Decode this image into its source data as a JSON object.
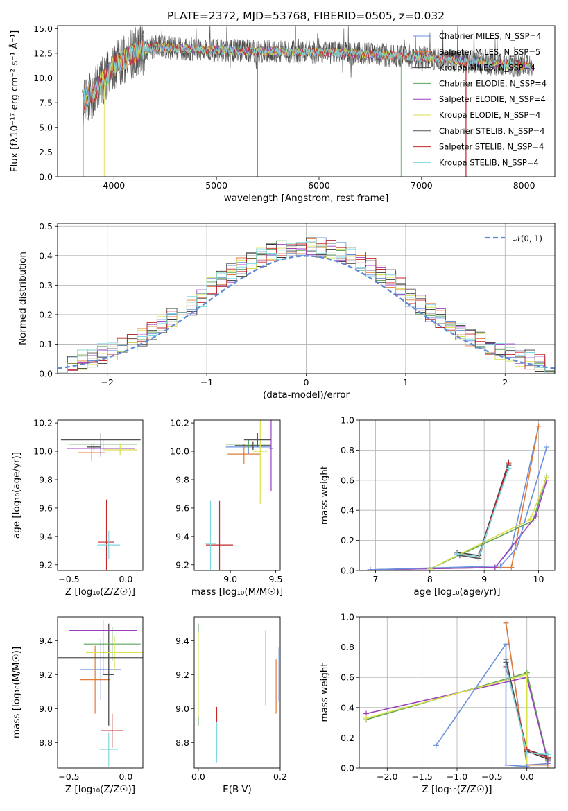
{
  "colors": {
    "palette": [
      "#6a8fdc",
      "#e07b39",
      "#3b3b3b",
      "#5fa55a",
      "#9b3fbf",
      "#d8e04a",
      "#555555",
      "#c0282a",
      "#7fd7e0"
    ],
    "gaussian": "#5a8ad6"
  },
  "chart_data": [
    {
      "id": "spectrum",
      "type": "line",
      "title": "PLATE=2372, MJD=53768, FIBERID=0505, z=0.032",
      "xlabel": "wavelength [Angstrom, rest frame]",
      "ylabel": "Flux [fλ10⁻¹⁷ erg cm⁻² s⁻¹ Å⁻¹]",
      "xlim": [
        3450,
        8300
      ],
      "ylim": [
        0,
        15.3
      ],
      "xticks": [
        "4000",
        "5000",
        "6000",
        "7000",
        "8000"
      ],
      "yticks": [
        "0.0",
        "2.5",
        "5.0",
        "7.5",
        "10.0",
        "12.5",
        "15.0"
      ],
      "legend": {
        "placement": "top-right",
        "entries": [
          "Chabrier MILES, N_SSP=4",
          "Salpeter MILES, N_SSP=5",
          "Kroupa MILES, N_SSP=4",
          "Chabrier ELODIE, N_SSP=4",
          "Salpeter ELODIE, N_SSP=4",
          "Kroupa ELODIE, N_SSP=4",
          "Chabrier STELIB, N_SSP=4",
          "Salpeter STELIB, N_SSP=4",
          "Kroupa STELIB, N_SSP=4"
        ]
      },
      "continuum": [
        [
          3700,
          7.8
        ],
        [
          3800,
          8.5
        ],
        [
          3900,
          9.8
        ],
        [
          4000,
          11.2
        ],
        [
          4200,
          12.6
        ],
        [
          4400,
          13.2
        ],
        [
          4600,
          13.0
        ],
        [
          5000,
          12.8
        ],
        [
          5500,
          12.7
        ],
        [
          6000,
          12.6
        ],
        [
          6500,
          12.4
        ],
        [
          7000,
          12.1
        ],
        [
          7500,
          11.6
        ],
        [
          8000,
          11.2
        ],
        [
          8080,
          11.1
        ]
      ]
    },
    {
      "id": "residuals",
      "type": "histogram",
      "xlabel": "(data-model)/error",
      "ylabel": "Normed distribution",
      "xlim": [
        -2.5,
        2.5
      ],
      "ylim": [
        0,
        0.51
      ],
      "xticks": [
        "−2",
        "−1",
        "0",
        "1",
        "2"
      ],
      "yticks": [
        "0.0",
        "0.1",
        "0.2",
        "0.3",
        "0.4",
        "0.5"
      ],
      "grid": true,
      "legend": {
        "placement": "top-right",
        "entries": [
          "𝒩(0, 1)"
        ]
      },
      "bins": {
        "start": -2.5,
        "width": 0.1,
        "count": 50
      }
    },
    {
      "id": "age_vs_Z",
      "type": "errorbar",
      "xlabel": "Z [log₁₀(Z/Z☉)]",
      "ylabel": "age  [log₁₀(age/yr)]",
      "xlim": [
        -0.6,
        0.15
      ],
      "ylim": [
        9.16,
        10.22
      ],
      "xticks": [
        "−0.5",
        "0.0"
      ],
      "yticks": [
        "9.2",
        "9.4",
        "9.6",
        "9.8",
        "10.0",
        "10.2"
      ],
      "points": [
        {
          "x": -0.22,
          "y": 10.02,
          "xerr": 0.28,
          "yerr": 0.06
        },
        {
          "x": -0.3,
          "y": 9.99,
          "xerr": 0.12,
          "yerr": 0.06
        },
        {
          "x": -0.28,
          "y": 10.03,
          "xerr": 0.06,
          "yerr": 0.03
        },
        {
          "x": -0.2,
          "y": 10.05,
          "xerr": 0.3,
          "yerr": 0.04
        },
        {
          "x": -0.22,
          "y": 10.02,
          "xerr": 0.3,
          "yerr": 0.05
        },
        {
          "x": -0.05,
          "y": 10.01,
          "xerr": 0.15,
          "yerr": 0.04
        },
        {
          "x": -0.22,
          "y": 10.08,
          "xerr": 0.35,
          "yerr": 0.05
        },
        {
          "x": -0.17,
          "y": 9.36,
          "xerr": 0.07,
          "yerr": 0.3
        },
        {
          "x": -0.15,
          "y": 9.34,
          "xerr": 0.1,
          "yerr": 0.1
        }
      ]
    },
    {
      "id": "age_vs_mass",
      "type": "errorbar",
      "xlabel": "mass [log₁₀(M/M☉)]",
      "ylabel": "",
      "xlim": [
        8.6,
        9.55
      ],
      "ylim": [
        9.16,
        10.22
      ],
      "xticks": [
        "9.0",
        "9.5"
      ],
      "yticks": [
        "9.2",
        "9.4",
        "9.6",
        "9.8",
        "10.0",
        "10.2"
      ],
      "points": [
        {
          "x": 9.2,
          "y": 10.03,
          "xerr": 0.25,
          "yerr": 0.05
        },
        {
          "x": 9.15,
          "y": 9.98,
          "xerr": 0.18,
          "yerr": 0.07
        },
        {
          "x": 9.25,
          "y": 10.04,
          "xerr": 0.2,
          "yerr": 0.03
        },
        {
          "x": 9.2,
          "y": 10.05,
          "xerr": 0.25,
          "yerr": 0.03
        },
        {
          "x": 9.45,
          "y": 10.02,
          "xerr": 0.02,
          "yerr": 0.3
        },
        {
          "x": 9.33,
          "y": 10.0,
          "xerr": 0.08,
          "yerr": 0.37
        },
        {
          "x": 9.3,
          "y": 10.08,
          "xerr": 0.15,
          "yerr": 0.05
        },
        {
          "x": 8.88,
          "y": 9.34,
          "xerr": 0.15,
          "yerr": 0.31
        },
        {
          "x": 8.78,
          "y": 9.35,
          "xerr": 0.06,
          "yerr": 0.3
        }
      ]
    },
    {
      "id": "mass_weight_vs_age",
      "type": "line",
      "xlabel": "age  [log₁₀(age/yr)]",
      "ylabel": "mass weight",
      "xlim": [
        6.7,
        10.3
      ],
      "ylim": [
        0,
        1
      ],
      "xticks": [
        "7",
        "8",
        "9",
        "10"
      ],
      "yticks": [
        "0.0",
        "0.2",
        "0.4",
        "0.6",
        "0.8",
        "1.0"
      ],
      "grid": true,
      "series": [
        {
          "x": [
            6.9,
            9.2,
            9.5,
            10.0
          ],
          "y": [
            0.005,
            0.02,
            0.15,
            0.96
          ]
        },
        {
          "x": [
            6.9,
            9.2,
            9.5,
            10.0
          ],
          "y": [
            0.005,
            0.02,
            0.02,
            0.96
          ]
        },
        {
          "x": [
            8.5,
            8.9,
            9.45
          ],
          "y": [
            0.12,
            0.1,
            0.72
          ]
        },
        {
          "x": [
            8.0,
            9.9,
            10.15
          ],
          "y": [
            0.01,
            0.33,
            0.63
          ]
        },
        {
          "x": [
            6.9,
            9.2,
            9.95,
            10.15
          ],
          "y": [
            0.005,
            0.02,
            0.36,
            0.6
          ]
        },
        {
          "x": [
            8.0,
            9.85,
            10.15
          ],
          "y": [
            0.01,
            0.34,
            0.62
          ]
        },
        {
          "x": [
            8.55,
            8.9,
            9.45
          ],
          "y": [
            0.1,
            0.08,
            0.7
          ]
        },
        {
          "x": [
            8.5,
            8.9,
            9.45
          ],
          "y": [
            0.11,
            0.09,
            0.71
          ]
        },
        {
          "x": [
            8.5,
            8.9,
            9.45
          ],
          "y": [
            0.11,
            0.09,
            0.68
          ]
        },
        {
          "x": [
            6.9,
            9.3,
            9.6,
            10.15
          ],
          "y": [
            0.005,
            0.03,
            0.15,
            0.82
          ]
        }
      ]
    },
    {
      "id": "mass_vs_Z",
      "type": "errorbar",
      "xlabel": "Z [log₁₀(Z/Z☉)]",
      "ylabel": "mass [log₁₀(M/M☉)]",
      "xlim": [
        -0.6,
        0.15
      ],
      "ylim": [
        8.65,
        9.54
      ],
      "xticks": [
        "−0.5",
        "0.0"
      ],
      "yticks": [
        "8.8",
        "9.0",
        "9.2",
        "9.4"
      ],
      "points": [
        {
          "x": -0.22,
          "y": 9.23,
          "xerr": 0.18,
          "yerr": 0.18
        },
        {
          "x": -0.27,
          "y": 9.17,
          "xerr": 0.13,
          "yerr": 0.2
        },
        {
          "x": -0.15,
          "y": 9.2,
          "xerr": 0.05,
          "yerr": 0.3
        },
        {
          "x": -0.12,
          "y": 9.38,
          "xerr": 0.25,
          "yerr": 0.1
        },
        {
          "x": -0.2,
          "y": 9.46,
          "xerr": 0.3,
          "yerr": 0.06
        },
        {
          "x": -0.1,
          "y": 9.33,
          "xerr": 0.25,
          "yerr": 0.1
        },
        {
          "x": -0.2,
          "y": 9.3,
          "xerr": 0.4,
          "yerr": 0.1
        },
        {
          "x": -0.12,
          "y": 8.87,
          "xerr": 0.1,
          "yerr": 0.1
        },
        {
          "x": -0.15,
          "y": 8.76,
          "xerr": 0.08,
          "yerr": 0.1
        }
      ]
    },
    {
      "id": "mass_vs_ebv",
      "type": "errorbar",
      "xlabel": "E(B-V)",
      "ylabel": "",
      "xlim": [
        -0.01,
        0.2
      ],
      "ylim": [
        8.65,
        9.54
      ],
      "xticks": [
        "0.0",
        "0.2"
      ],
      "yticks": [
        "8.8",
        "9.0",
        "9.2",
        "9.4"
      ],
      "points": [
        {
          "x": 0.0,
          "y": 9.25,
          "xerr": 0,
          "yerr": 0.25
        },
        {
          "x": 0.19,
          "y": 9.13,
          "xerr": 0,
          "yerr": 0.16
        },
        {
          "x": 0.0,
          "y": 9.3,
          "xerr": 0,
          "yerr": 0.18
        },
        {
          "x": 0.0,
          "y": 9.2,
          "xerr": 0,
          "yerr": 0.3
        },
        {
          "x": 0.0,
          "y": 9.2,
          "xerr": 0,
          "yerr": 0.25
        },
        {
          "x": 0.0,
          "y": 9.2,
          "xerr": 0,
          "yerr": 0.25
        },
        {
          "x": 0.165,
          "y": 9.24,
          "xerr": 0,
          "yerr": 0.22
        },
        {
          "x": 0.045,
          "y": 8.87,
          "xerr": 0,
          "yerr": 0.14
        },
        {
          "x": 0.045,
          "y": 8.8,
          "xerr": 0,
          "yerr": 0.12
        },
        {
          "x": 0.197,
          "y": 9.2,
          "xerr": 0,
          "yerr": 0.16
        }
      ]
    },
    {
      "id": "mass_weight_vs_Z",
      "type": "line",
      "xlabel": "Z [log₁₀(Z/Z☉)]",
      "ylabel": "mass weight",
      "xlim": [
        -2.4,
        0.4
      ],
      "ylim": [
        0,
        1
      ],
      "xticks": [
        "−2.0",
        "−1.5",
        "−1.0",
        "−0.5",
        "0.0"
      ],
      "yticks": [
        "0.0",
        "0.2",
        "0.4",
        "0.6",
        "0.8",
        "1.0"
      ],
      "grid": true,
      "series": [
        {
          "x": [
            -0.3,
            0.0,
            0.3
          ],
          "y": [
            0.96,
            0.02,
            0.03
          ]
        },
        {
          "x": [
            -0.3,
            0.0,
            0.3
          ],
          "y": [
            0.96,
            0.02,
            0.02
          ]
        },
        {
          "x": [
            -0.3,
            0.0,
            0.3
          ],
          "y": [
            0.72,
            0.11,
            0.06
          ]
        },
        {
          "x": [
            -2.3,
            0.0,
            0.3
          ],
          "y": [
            0.32,
            0.63,
            0.05
          ]
        },
        {
          "x": [
            -2.3,
            0.0,
            0.3
          ],
          "y": [
            0.36,
            0.6,
            0.04
          ]
        },
        {
          "x": [
            -2.3,
            0.0,
            0.0
          ],
          "y": [
            0.33,
            0.62,
            0.01
          ]
        },
        {
          "x": [
            -0.3,
            0.0,
            0.3
          ],
          "y": [
            0.7,
            0.12,
            0.08
          ]
        },
        {
          "x": [
            -0.3,
            0.0,
            0.3
          ],
          "y": [
            0.67,
            0.12,
            0.07
          ]
        },
        {
          "x": [
            -0.3,
            0.0,
            0.3
          ],
          "y": [
            0.68,
            0.1,
            0.09
          ]
        },
        {
          "x": [
            -1.3,
            -0.3,
            -0.3,
            0.0
          ],
          "y": [
            0.15,
            0.82,
            0.02,
            0.01
          ]
        }
      ]
    }
  ]
}
